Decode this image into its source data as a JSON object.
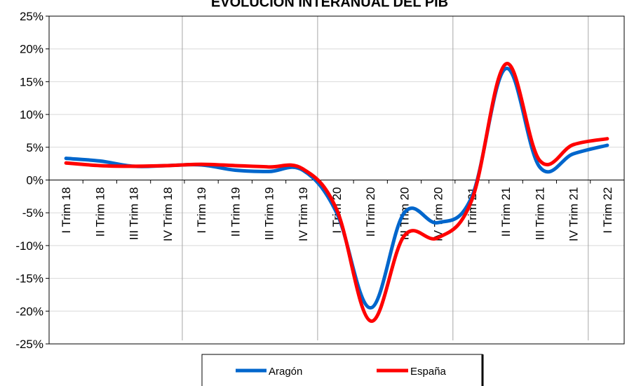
{
  "chart_data": {
    "type": "line",
    "title": "EVOLUCIÓN INTERANUAL DEL PIB",
    "xlabel": "",
    "ylabel": "",
    "categories": [
      "I Trim 18",
      "II Trim 18",
      "III Trim 18",
      "IV Trim 18",
      "I Trim 19",
      "II Trim 19",
      "III Trim 19",
      "IV Trim 19",
      "I Trim 20",
      "II Trim 20",
      "III Trim 20",
      "IV Trim 20",
      "I Trim 21",
      "II Trim 21",
      "III Trim 21",
      "IV Trim 21",
      "I Trim 22"
    ],
    "series": [
      {
        "name": "Aragón",
        "color": "#0066cc",
        "values": [
          3.3,
          2.9,
          2.1,
          2.2,
          2.3,
          1.5,
          1.3,
          1.5,
          -5.0,
          -19.5,
          -5.0,
          -6.5,
          -2.5,
          17.0,
          2.0,
          4.0,
          5.3
        ]
      },
      {
        "name": "España",
        "color": "#ff0000",
        "values": [
          2.6,
          2.2,
          2.1,
          2.2,
          2.4,
          2.2,
          2.0,
          1.7,
          -4.5,
          -21.5,
          -8.5,
          -8.8,
          -3.0,
          17.7,
          3.0,
          5.4,
          6.3
        ]
      }
    ],
    "ylim": [
      -25,
      25
    ],
    "yticks": [
      -25,
      -20,
      -15,
      -10,
      -5,
      0,
      5,
      10,
      15,
      20,
      25
    ],
    "ytick_labels": [
      "-25%",
      "-20%",
      "-15%",
      "-10%",
      "-5%",
      "0%",
      "5%",
      "10%",
      "15%",
      "20%",
      "25%"
    ],
    "grid": true,
    "year_separators_after": [
      "IV Trim 18",
      "IV Trim 19",
      "IV Trim 20",
      "IV Trim 21"
    ],
    "legend": "bottom-center"
  }
}
